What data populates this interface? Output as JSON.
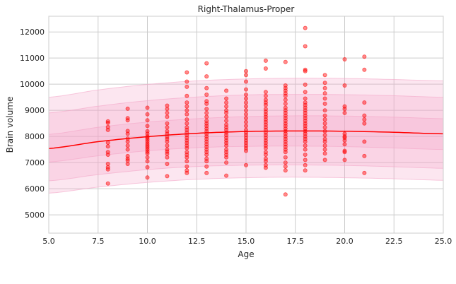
{
  "chart_data": {
    "type": "scatter",
    "title": "Right-Thalamus-Proper",
    "xlabel": "Age",
    "ylabel": "Brain volume",
    "xlim": [
      5.0,
      25.0
    ],
    "ylim": [
      4300,
      12600
    ],
    "xticks": [
      "5.0",
      "7.5",
      "10.0",
      "12.5",
      "15.0",
      "17.5",
      "20.0",
      "22.5",
      "25.0"
    ],
    "yticks": [
      "5000",
      "6000",
      "7000",
      "8000",
      "9000",
      "10000",
      "11000",
      "12000"
    ],
    "grid": true,
    "colors": {
      "points": "#ff0000",
      "median_line": "#ff0000",
      "band": "#f4a6c8",
      "background": "#ffffff",
      "grid": "#cccccc"
    },
    "median_curve": {
      "x": [
        5,
        7.5,
        10,
        12.5,
        15,
        17.5,
        20,
        22.5,
        25
      ],
      "y": [
        7540,
        7800,
        7990,
        8120,
        8190,
        8210,
        8200,
        8160,
        8100
      ]
    },
    "centile_bands": [
      {
        "centiles": "25-75",
        "lower": [
          7020,
          7260,
          7450,
          7570,
          7620,
          7630,
          7610,
          7560,
          7500
        ],
        "upper": [
          8080,
          8350,
          8550,
          8680,
          8760,
          8790,
          8780,
          8740,
          8680
        ]
      },
      {
        "centiles": "5-95",
        "lower": [
          6300,
          6540,
          6730,
          6850,
          6900,
          6910,
          6890,
          6840,
          6780
        ],
        "upper": [
          8900,
          9160,
          9370,
          9510,
          9590,
          9610,
          9600,
          9560,
          9500
        ]
      },
      {
        "centiles": "1-99",
        "lower": [
          5830,
          6060,
          6240,
          6360,
          6420,
          6440,
          6420,
          6380,
          6320
        ],
        "upper": [
          9500,
          9780,
          9990,
          10130,
          10200,
          10230,
          10220,
          10180,
          10130
        ]
      }
    ],
    "points": [
      [
        8,
        8580
      ],
      [
        8,
        8520
      ],
      [
        8,
        8360
      ],
      [
        8,
        8250
      ],
      [
        8,
        7760
      ],
      [
        8,
        7620
      ],
      [
        8,
        7400
      ],
      [
        8,
        7300
      ],
      [
        8,
        6950
      ],
      [
        8,
        6820
      ],
      [
        8,
        6740
      ],
      [
        8,
        6200
      ],
      [
        9,
        9060
      ],
      [
        9,
        8700
      ],
      [
        9,
        8620
      ],
      [
        9,
        8210
      ],
      [
        9,
        8100
      ],
      [
        9,
        7920
      ],
      [
        9,
        7800
      ],
      [
        9,
        7650
      ],
      [
        9,
        7500
      ],
      [
        9,
        7250
      ],
      [
        9,
        7150
      ],
      [
        9,
        7080
      ],
      [
        9,
        6950
      ],
      [
        10,
        9100
      ],
      [
        10,
        8850
      ],
      [
        10,
        8620
      ],
      [
        10,
        8400
      ],
      [
        10,
        8200
      ],
      [
        10,
        8100
      ],
      [
        10,
        8000
      ],
      [
        10,
        7950
      ],
      [
        10,
        7880
      ],
      [
        10,
        7800
      ],
      [
        10,
        7720
      ],
      [
        10,
        7650
      ],
      [
        10,
        7580
      ],
      [
        10,
        7500
      ],
      [
        10,
        7420
      ],
      [
        10,
        7350
      ],
      [
        10,
        7200
      ],
      [
        10,
        7050
      ],
      [
        10,
        6820
      ],
      [
        10,
        6430
      ],
      [
        11,
        9180
      ],
      [
        11,
        9050
      ],
      [
        11,
        8900
      ],
      [
        11,
        8750
      ],
      [
        11,
        8500
      ],
      [
        11,
        8350
      ],
      [
        11,
        8200
      ],
      [
        11,
        8100
      ],
      [
        11,
        7980
      ],
      [
        11,
        7900
      ],
      [
        11,
        7800
      ],
      [
        11,
        7650
      ],
      [
        11,
        7500
      ],
      [
        11,
        7420
      ],
      [
        11,
        7330
      ],
      [
        11,
        7200
      ],
      [
        11,
        6950
      ],
      [
        11,
        6480
      ],
      [
        12,
        10450
      ],
      [
        12,
        10100
      ],
      [
        12,
        9900
      ],
      [
        12,
        9550
      ],
      [
        12,
        9300
      ],
      [
        12,
        9150
      ],
      [
        12,
        9000
      ],
      [
        12,
        8850
      ],
      [
        12,
        8650
      ],
      [
        12,
        8500
      ],
      [
        12,
        8350
      ],
      [
        12,
        8250
      ],
      [
        12,
        8150
      ],
      [
        12,
        8050
      ],
      [
        12,
        7950
      ],
      [
        12,
        7850
      ],
      [
        12,
        7750
      ],
      [
        12,
        7650
      ],
      [
        12,
        7550
      ],
      [
        12,
        7400
      ],
      [
        12,
        7300
      ],
      [
        12,
        7200
      ],
      [
        12,
        7050
      ],
      [
        12,
        6850
      ],
      [
        12,
        6700
      ],
      [
        12,
        6600
      ],
      [
        13,
        10800
      ],
      [
        13,
        10300
      ],
      [
        13,
        9850
      ],
      [
        13,
        9600
      ],
      [
        13,
        9350
      ],
      [
        13,
        9250
      ],
      [
        13,
        9050
      ],
      [
        13,
        8900
      ],
      [
        13,
        8750
      ],
      [
        13,
        8600
      ],
      [
        13,
        8500
      ],
      [
        13,
        8400
      ],
      [
        13,
        8300
      ],
      [
        13,
        8200
      ],
      [
        13,
        8100
      ],
      [
        13,
        8000
      ],
      [
        13,
        7900
      ],
      [
        13,
        7800
      ],
      [
        13,
        7700
      ],
      [
        13,
        7600
      ],
      [
        13,
        7500
      ],
      [
        13,
        7400
      ],
      [
        13,
        7300
      ],
      [
        13,
        7150
      ],
      [
        13,
        7050
      ],
      [
        13,
        6850
      ],
      [
        13,
        6600
      ],
      [
        14,
        9750
      ],
      [
        14,
        9450
      ],
      [
        14,
        9300
      ],
      [
        14,
        9150
      ],
      [
        14,
        9000
      ],
      [
        14,
        8900
      ],
      [
        14,
        8750
      ],
      [
        14,
        8600
      ],
      [
        14,
        8450
      ],
      [
        14,
        8350
      ],
      [
        14,
        8250
      ],
      [
        14,
        8150
      ],
      [
        14,
        8050
      ],
      [
        14,
        7950
      ],
      [
        14,
        7850
      ],
      [
        14,
        7750
      ],
      [
        14,
        7650
      ],
      [
        14,
        7500
      ],
      [
        14,
        7400
      ],
      [
        14,
        7300
      ],
      [
        14,
        7200
      ],
      [
        14,
        7000
      ],
      [
        14,
        6500
      ],
      [
        15,
        10500
      ],
      [
        15,
        10350
      ],
      [
        15,
        10100
      ],
      [
        15,
        9800
      ],
      [
        15,
        9600
      ],
      [
        15,
        9450
      ],
      [
        15,
        9300
      ],
      [
        15,
        9150
      ],
      [
        15,
        9000
      ],
      [
        15,
        8850
      ],
      [
        15,
        8700
      ],
      [
        15,
        8550
      ],
      [
        15,
        8400
      ],
      [
        15,
        8250
      ],
      [
        15,
        8150
      ],
      [
        15,
        8050
      ],
      [
        15,
        7950
      ],
      [
        15,
        7850
      ],
      [
        15,
        7750
      ],
      [
        15,
        7650
      ],
      [
        15,
        7550
      ],
      [
        15,
        7450
      ],
      [
        15,
        6900
      ],
      [
        16,
        10900
      ],
      [
        16,
        10600
      ],
      [
        16,
        9700
      ],
      [
        16,
        9550
      ],
      [
        16,
        9400
      ],
      [
        16,
        9300
      ],
      [
        16,
        9200
      ],
      [
        16,
        9050
      ],
      [
        16,
        8950
      ],
      [
        16,
        8850
      ],
      [
        16,
        8750
      ],
      [
        16,
        8650
      ],
      [
        16,
        8550
      ],
      [
        16,
        8450
      ],
      [
        16,
        8350
      ],
      [
        16,
        8250
      ],
      [
        16,
        8150
      ],
      [
        16,
        8050
      ],
      [
        16,
        7950
      ],
      [
        16,
        7850
      ],
      [
        16,
        7750
      ],
      [
        16,
        7650
      ],
      [
        16,
        7550
      ],
      [
        16,
        7400
      ],
      [
        16,
        7300
      ],
      [
        16,
        7150
      ],
      [
        16,
        7050
      ],
      [
        16,
        6900
      ],
      [
        16,
        6800
      ],
      [
        17,
        10850
      ],
      [
        17,
        9950
      ],
      [
        17,
        9850
      ],
      [
        17,
        9750
      ],
      [
        17,
        9650
      ],
      [
        17,
        9550
      ],
      [
        17,
        9400
      ],
      [
        17,
        9250
      ],
      [
        17,
        9100
      ],
      [
        17,
        9000
      ],
      [
        17,
        8900
      ],
      [
        17,
        8800
      ],
      [
        17,
        8700
      ],
      [
        17,
        8600
      ],
      [
        17,
        8500
      ],
      [
        17,
        8400
      ],
      [
        17,
        8300
      ],
      [
        17,
        8200
      ],
      [
        17,
        8100
      ],
      [
        17,
        8000
      ],
      [
        17,
        7900
      ],
      [
        17,
        7800
      ],
      [
        17,
        7700
      ],
      [
        17,
        7600
      ],
      [
        17,
        7500
      ],
      [
        17,
        7400
      ],
      [
        17,
        7200
      ],
      [
        17,
        7000
      ],
      [
        17,
        6850
      ],
      [
        17,
        6700
      ],
      [
        17,
        5780
      ],
      [
        18,
        12150
      ],
      [
        18,
        11450
      ],
      [
        18,
        10550
      ],
      [
        18,
        10500
      ],
      [
        18,
        9980
      ],
      [
        18,
        9700
      ],
      [
        18,
        9450
      ],
      [
        18,
        9300
      ],
      [
        18,
        9200
      ],
      [
        18,
        9100
      ],
      [
        18,
        9000
      ],
      [
        18,
        8900
      ],
      [
        18,
        8800
      ],
      [
        18,
        8700
      ],
      [
        18,
        8600
      ],
      [
        18,
        8500
      ],
      [
        18,
        8400
      ],
      [
        18,
        8300
      ],
      [
        18,
        8200
      ],
      [
        18,
        8100
      ],
      [
        18,
        8000
      ],
      [
        18,
        7900
      ],
      [
        18,
        7800
      ],
      [
        18,
        7650
      ],
      [
        18,
        7500
      ],
      [
        18,
        7300
      ],
      [
        18,
        7100
      ],
      [
        18,
        6900
      ],
      [
        18,
        6700
      ],
      [
        19,
        10350
      ],
      [
        19,
        10050
      ],
      [
        19,
        9850
      ],
      [
        19,
        9650
      ],
      [
        19,
        9450
      ],
      [
        19,
        9250
      ],
      [
        19,
        9000
      ],
      [
        19,
        8800
      ],
      [
        19,
        8650
      ],
      [
        19,
        8500
      ],
      [
        19,
        8350
      ],
      [
        19,
        8200
      ],
      [
        19,
        8050
      ],
      [
        19,
        7900
      ],
      [
        19,
        7800
      ],
      [
        19,
        7650
      ],
      [
        19,
        7500
      ],
      [
        19,
        7350
      ],
      [
        19,
        7100
      ],
      [
        20,
        10950
      ],
      [
        20,
        9950
      ],
      [
        20,
        9150
      ],
      [
        20,
        9050
      ],
      [
        20,
        8900
      ],
      [
        20,
        8100
      ],
      [
        20,
        8000
      ],
      [
        20,
        7950
      ],
      [
        20,
        7850
      ],
      [
        20,
        7700
      ],
      [
        20,
        7450
      ],
      [
        20,
        7400
      ],
      [
        20,
        7100
      ],
      [
        21,
        11050
      ],
      [
        21,
        10550
      ],
      [
        21,
        9300
      ],
      [
        21,
        8800
      ],
      [
        21,
        8650
      ],
      [
        21,
        8500
      ],
      [
        21,
        7800
      ],
      [
        21,
        7250
      ],
      [
        21,
        6600
      ]
    ]
  }
}
